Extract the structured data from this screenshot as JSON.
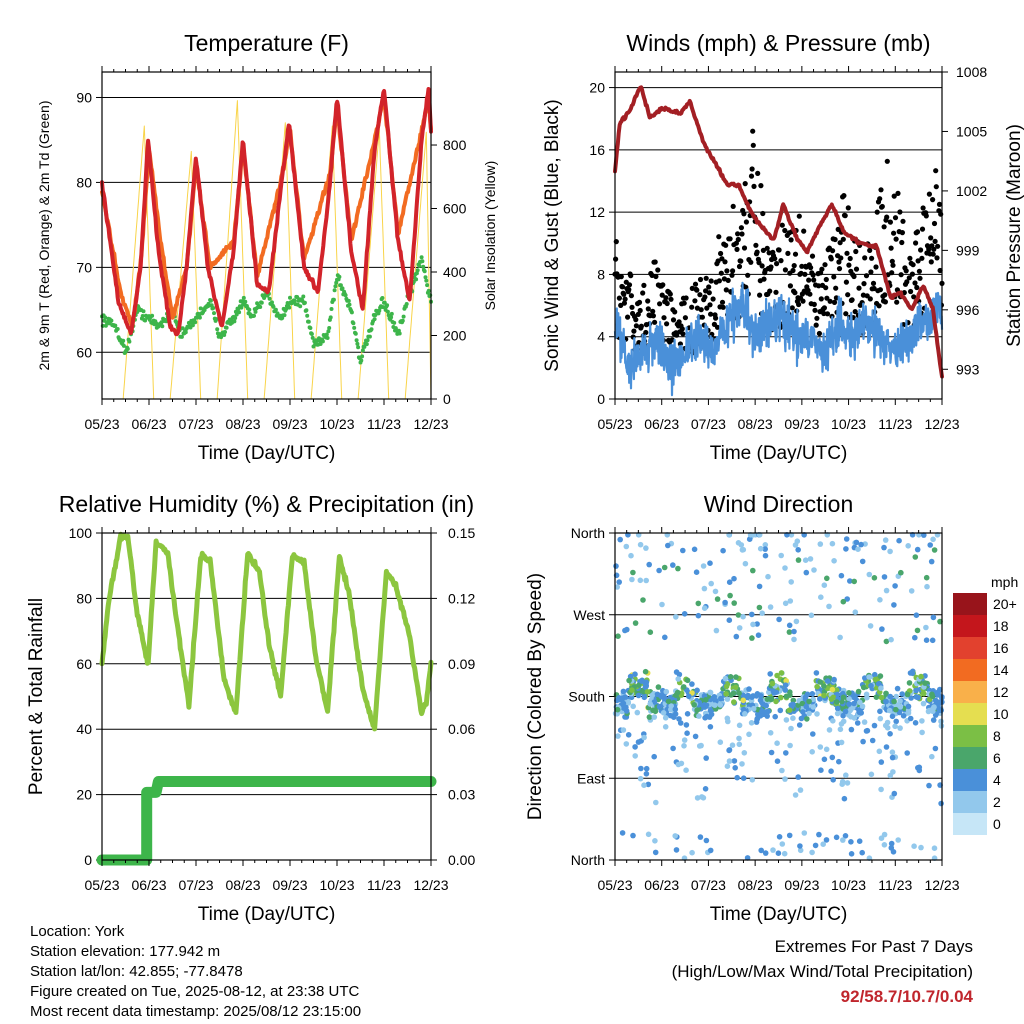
{
  "x_ticks": [
    "05/23",
    "06/23",
    "07/23",
    "08/23",
    "09/23",
    "10/23",
    "11/23",
    "12/23"
  ],
  "colors": {
    "temp_2m": "#d2232a",
    "temp_9m": "#f26b21",
    "dewpoint": "#3db54a",
    "solar": "#f9d44a",
    "wind": "#4a90d9",
    "gust": "#000000",
    "pressure": "#a31f24",
    "rh": "#8cc63f",
    "precip": "#3db54a"
  },
  "charts": {
    "temperature": {
      "title": "Temperature (F)",
      "xlabel": "Time (Day/UTC)",
      "ylabel_left": "2m & 9m T (Red, Orange) & 2m Td (Green)",
      "ylabel_right": "Solar Insolation (Yellow)",
      "y_left_ticks": [
        "60",
        "70",
        "80",
        "90"
      ],
      "y_right_ticks": [
        "0",
        "200",
        "400",
        "600",
        "800"
      ]
    },
    "winds": {
      "title": "Winds (mph) & Pressure (mb)",
      "xlabel": "Time (Day/UTC)",
      "ylabel_left": "Sonic Wind & Gust (Blue, Black)",
      "ylabel_right": "Station Pressure (Maroon)",
      "y_left_ticks": [
        "0",
        "4",
        "8",
        "12",
        "16",
        "20"
      ],
      "y_right_ticks": [
        "993",
        "996",
        "999",
        "1002",
        "1005",
        "1008"
      ]
    },
    "humidity": {
      "title": "Relative Humidity (%) & Precipitation (in)",
      "xlabel": "Time (Day/UTC)",
      "ylabel_left": "Percent & Total Rainfall",
      "y_left_ticks": [
        "0",
        "20",
        "40",
        "60",
        "80",
        "100"
      ],
      "y_right_ticks": [
        "0.00",
        "0.03",
        "0.06",
        "0.09",
        "0.12",
        "0.15"
      ]
    },
    "direction": {
      "title": "Wind Direction",
      "xlabel": "Time (Day/UTC)",
      "ylabel_left": "Direction (Colored By Speed)",
      "y_left_ticks": [
        "North",
        "East",
        "South",
        "West",
        "North"
      ],
      "legend_title": "mph",
      "legend_labels": [
        "0",
        "2",
        "4",
        "6",
        "8",
        "10",
        "12",
        "14",
        "16",
        "18",
        "20+"
      ],
      "legend_colors": [
        "#c6e6f7",
        "#92c8ec",
        "#4a90d9",
        "#4aa66b",
        "#7bbf45",
        "#e5de50",
        "#f9b04a",
        "#f26b21",
        "#e2412e",
        "#c4161c",
        "#98141b"
      ]
    }
  },
  "chart_data": [
    {
      "type": "line",
      "title": "Temperature (F)",
      "xlim": [
        0,
        7
      ],
      "ylim": [
        54.5,
        93
      ],
      "y2lim": [
        0,
        1030
      ],
      "series": [
        {
          "name": "2m T",
          "values": [
            [
              0,
              80
            ],
            [
              0.35,
              66
            ],
            [
              0.62,
              62
            ],
            [
              0.82,
              70
            ],
            [
              0.98,
              85
            ],
            [
              1.2,
              72
            ],
            [
              1.45,
              63
            ],
            [
              1.62,
              62
            ],
            [
              1.8,
              70
            ],
            [
              2.0,
              83
            ],
            [
              2.25,
              70
            ],
            [
              2.55,
              63
            ],
            [
              2.8,
              72
            ],
            [
              3.0,
              85
            ],
            [
              3.3,
              68
            ],
            [
              3.55,
              67
            ],
            [
              3.8,
              79
            ],
            [
              3.98,
              87
            ],
            [
              4.3,
              70
            ],
            [
              4.6,
              67
            ],
            [
              4.85,
              80
            ],
            [
              5.0,
              90
            ],
            [
              5.3,
              72
            ],
            [
              5.55,
              65
            ],
            [
              5.8,
              84
            ],
            [
              6.0,
              91
            ],
            [
              6.3,
              73
            ],
            [
              6.55,
              66
            ],
            [
              6.8,
              85
            ],
            [
              6.95,
              91
            ],
            [
              7.0,
              86
            ]
          ]
        },
        {
          "name": "9m T",
          "values": [
            [
              0,
              79
            ],
            [
              0.4,
              67
            ],
            [
              0.65,
              63
            ],
            [
              0.85,
              72
            ],
            [
              1.0,
              84
            ],
            [
              1.25,
              73
            ],
            [
              1.5,
              64
            ],
            [
              1.8,
              70
            ],
            [
              2.0,
              82
            ],
            [
              2.3,
              70
            ],
            [
              2.8,
              73
            ],
            [
              3.0,
              84
            ],
            [
              3.3,
              69
            ],
            [
              3.8,
              80
            ],
            [
              4.0,
              86
            ],
            [
              4.3,
              71
            ],
            [
              4.85,
              81
            ],
            [
              5.0,
              89
            ],
            [
              5.3,
              73
            ],
            [
              5.8,
              85
            ],
            [
              6.0,
              90
            ],
            [
              6.3,
              74
            ],
            [
              6.8,
              86
            ],
            [
              6.95,
              90
            ],
            [
              7.0,
              86
            ]
          ]
        },
        {
          "name": "2m Td",
          "values": [
            [
              0,
              64
            ],
            [
              0.3,
              63
            ],
            [
              0.5,
              60
            ],
            [
              0.75,
              65
            ],
            [
              1.0,
              64
            ],
            [
              1.2,
              63
            ],
            [
              1.5,
              65
            ],
            [
              1.7,
              62
            ],
            [
              2.0,
              64
            ],
            [
              2.3,
              66
            ],
            [
              2.5,
              62
            ],
            [
              2.8,
              64
            ],
            [
              3.0,
              66
            ],
            [
              3.2,
              64
            ],
            [
              3.5,
              67
            ],
            [
              3.8,
              64
            ],
            [
              4.0,
              66
            ],
            [
              4.3,
              66
            ],
            [
              4.5,
              61
            ],
            [
              4.8,
              62
            ],
            [
              5.0,
              69
            ],
            [
              5.3,
              65
            ],
            [
              5.5,
              59
            ],
            [
              5.8,
              64
            ],
            [
              6.0,
              66
            ],
            [
              6.3,
              62
            ],
            [
              6.5,
              66
            ],
            [
              6.8,
              71
            ],
            [
              7.0,
              66
            ]
          ]
        },
        {
          "name": "Solar Insolation",
          "values": [
            [
              0,
              0
            ],
            [
              0.45,
              0
            ],
            [
              0.9,
              860
            ],
            [
              1.1,
              0
            ],
            [
              1.45,
              0
            ],
            [
              1.9,
              780
            ],
            [
              2.1,
              0
            ],
            [
              2.45,
              0
            ],
            [
              2.88,
              940
            ],
            [
              3.1,
              0
            ],
            [
              3.45,
              0
            ],
            [
              3.9,
              870
            ],
            [
              4.1,
              0
            ],
            [
              4.45,
              0
            ],
            [
              4.9,
              860
            ],
            [
              5.1,
              0
            ],
            [
              5.45,
              0
            ],
            [
              5.9,
              850
            ],
            [
              6.1,
              0
            ],
            [
              6.45,
              0
            ],
            [
              6.9,
              840
            ],
            [
              7.0,
              0
            ]
          ]
        }
      ]
    },
    {
      "type": "line",
      "title": "Winds (mph) & Pressure (mb)",
      "xlim": [
        0,
        7
      ],
      "ylim": [
        0,
        21
      ],
      "y2lim": [
        991.5,
        1008
      ],
      "series": [
        {
          "name": "Sonic Wind",
          "values": [
            [
              0,
              5
            ],
            [
              0.3,
              2
            ],
            [
              0.6,
              3
            ],
            [
              0.9,
              4
            ],
            [
              1.2,
              2
            ],
            [
              1.5,
              3
            ],
            [
              1.8,
              4
            ],
            [
              2.1,
              3
            ],
            [
              2.4,
              5
            ],
            [
              2.7,
              6
            ],
            [
              3.0,
              4
            ],
            [
              3.3,
              5
            ],
            [
              3.6,
              5
            ],
            [
              3.9,
              4
            ],
            [
              4.2,
              4
            ],
            [
              4.5,
              3
            ],
            [
              4.8,
              5
            ],
            [
              5.1,
              4
            ],
            [
              5.4,
              5
            ],
            [
              5.7,
              4
            ],
            [
              6.0,
              3
            ],
            [
              6.3,
              4
            ],
            [
              6.6,
              5
            ],
            [
              6.9,
              6
            ],
            [
              7.0,
              5
            ]
          ]
        },
        {
          "name": "Gust",
          "values": [
            [
              0,
              9
            ],
            [
              0.5,
              6
            ],
            [
              0.9,
              8
            ],
            [
              1.3,
              5
            ],
            [
              1.8,
              7
            ],
            [
              2.4,
              10
            ],
            [
              2.7,
              12
            ],
            [
              2.95,
              15
            ],
            [
              3.3,
              9
            ],
            [
              3.6,
              10
            ],
            [
              3.95,
              12
            ],
            [
              4.3,
              7
            ],
            [
              4.6,
              9
            ],
            [
              4.95,
              12
            ],
            [
              5.3,
              8
            ],
            [
              5.6,
              11
            ],
            [
              5.9,
              14
            ],
            [
              6.3,
              8
            ],
            [
              6.7,
              12
            ],
            [
              6.95,
              14
            ],
            [
              7.0,
              12
            ]
          ]
        },
        {
          "name": "Station Pressure",
          "values": [
            [
              0,
              1002.9
            ],
            [
              0.1,
              1005.4
            ],
            [
              0.3,
              1006
            ],
            [
              0.55,
              1007.3
            ],
            [
              0.75,
              1005.7
            ],
            [
              1.0,
              1006.2
            ],
            [
              1.4,
              1005.9
            ],
            [
              1.6,
              1006.5
            ],
            [
              1.9,
              1004.4
            ],
            [
              2.2,
              1003.2
            ],
            [
              2.4,
              1002.3
            ],
            [
              2.65,
              1002.3
            ],
            [
              2.9,
              1001
            ],
            [
              3.1,
              1000.3
            ],
            [
              3.4,
              999.5
            ],
            [
              3.6,
              1001.3
            ],
            [
              3.9,
              999.6
            ],
            [
              4.1,
              998.9
            ],
            [
              4.4,
              1000.3
            ],
            [
              4.65,
              1001.3
            ],
            [
              4.9,
              999.9
            ],
            [
              5.3,
              999.3
            ],
            [
              5.6,
              999.2
            ],
            [
              5.9,
              996.6
            ],
            [
              6.1,
              996.9
            ],
            [
              6.35,
              996
            ],
            [
              6.6,
              997.2
            ],
            [
              6.8,
              996.1
            ],
            [
              7.0,
              992.6
            ]
          ]
        }
      ]
    },
    {
      "type": "line",
      "title": "Relative Humidity (%) & Precipitation (in)",
      "xlim": [
        0,
        7
      ],
      "ylim": [
        0,
        100
      ],
      "y2lim": [
        0,
        0.15
      ],
      "series": [
        {
          "name": "Relative Humidity",
          "values": [
            [
              0,
              60
            ],
            [
              0.15,
              80
            ],
            [
              0.4,
              99
            ],
            [
              0.55,
              99
            ],
            [
              0.75,
              75
            ],
            [
              0.98,
              60
            ],
            [
              1.15,
              97
            ],
            [
              1.4,
              94
            ],
            [
              1.6,
              72
            ],
            [
              1.85,
              47
            ],
            [
              2.1,
              93
            ],
            [
              2.3,
              92
            ],
            [
              2.6,
              55
            ],
            [
              2.85,
              45
            ],
            [
              3.1,
              94
            ],
            [
              3.35,
              88
            ],
            [
              3.55,
              66
            ],
            [
              3.8,
              50
            ],
            [
              4.05,
              93
            ],
            [
              4.3,
              91
            ],
            [
              4.55,
              62
            ],
            [
              4.8,
              45
            ],
            [
              5.05,
              93
            ],
            [
              5.25,
              82
            ],
            [
              5.55,
              52
            ],
            [
              5.8,
              40
            ],
            [
              6.05,
              88
            ],
            [
              6.25,
              84
            ],
            [
              6.55,
              68
            ],
            [
              6.8,
              45
            ],
            [
              6.9,
              48
            ],
            [
              7.0,
              60
            ]
          ]
        },
        {
          "name": "Total Precipitation",
          "values": [
            [
              0,
              0
            ],
            [
              0.95,
              0
            ],
            [
              0.95,
              0.031
            ],
            [
              1.15,
              0.031
            ],
            [
              1.2,
              0.036
            ],
            [
              7.0,
              0.036
            ]
          ]
        }
      ]
    },
    {
      "type": "scatter",
      "title": "Wind Direction",
      "xlim": [
        0,
        7
      ],
      "y_categories": [
        "North",
        "East",
        "South",
        "West",
        "North"
      ],
      "color_scale": {
        "label": "mph",
        "min": 0,
        "max": 20
      }
    }
  ],
  "footer": {
    "location": "Location: York",
    "elevation": "Station elevation: 177.942 m",
    "latlon": "Station lat/lon: 42.855; -77.8478",
    "created": "Figure created on Tue, 2025-08-12, at 23:38 UTC",
    "recent": "Most recent data timestamp: 2025/08/12 23:15:00"
  },
  "extremes": {
    "title": "Extremes For Past 7 Days",
    "subtitle": "(High/Low/Max Wind/Total Precipitation)",
    "values": "92/58.7/10.7/0.04"
  }
}
